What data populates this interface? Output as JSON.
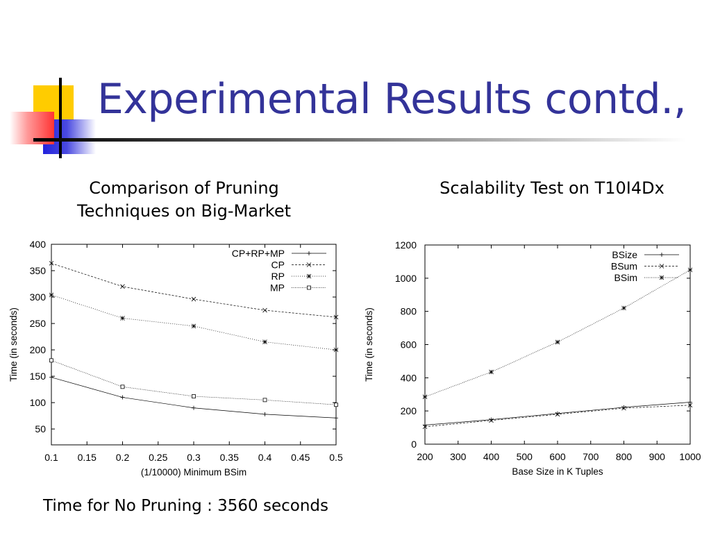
{
  "slide": {
    "title": "Experimental Results contd.,",
    "left_caption_line1": "Comparison of Pruning",
    "left_caption_line2": "Techniques on Big-Market",
    "right_caption": "Scalability Test on T10I4Dx",
    "footnote": "Time for No Pruning : 3560 seconds",
    "accent_colors": {
      "title": "#333399",
      "yellow": "#ffcc00",
      "red": "#ff3333",
      "blue": "#2222dd"
    }
  },
  "chart_data": [
    {
      "type": "line",
      "xlabel": "(1/10000) Minimum BSim",
      "ylabel": "Time (in seconds)",
      "xlim": [
        0.1,
        0.5
      ],
      "ylim": [
        20,
        400
      ],
      "xticks": [
        "0.1",
        "0.15",
        "0.2",
        "0.25",
        "0.3",
        "0.35",
        "0.4",
        "0.45",
        "0.5"
      ],
      "yticks": [
        "50",
        "100",
        "150",
        "200",
        "250",
        "300",
        "350",
        "400"
      ],
      "legend_position": "top-right",
      "x": [
        0.1,
        0.2,
        0.3,
        0.4,
        0.5
      ],
      "series": [
        {
          "name": "CP+RP+MP",
          "values": [
            148,
            110,
            90,
            78,
            71
          ]
        },
        {
          "name": "CP",
          "values": [
            364,
            320,
            296,
            275,
            262
          ]
        },
        {
          "name": "RP",
          "values": [
            304,
            260,
            245,
            215,
            200
          ]
        },
        {
          "name": "MP",
          "values": [
            180,
            130,
            112,
            105,
            96
          ]
        }
      ]
    },
    {
      "type": "line",
      "xlabel": "Base Size in K Tuples",
      "ylabel": "Time (in seconds)",
      "xlim": [
        200,
        1000
      ],
      "ylim": [
        0,
        1200
      ],
      "xticks": [
        "200",
        "300",
        "400",
        "500",
        "600",
        "700",
        "800",
        "900",
        "1000"
      ],
      "yticks": [
        "0",
        "200",
        "400",
        "600",
        "800",
        "1000",
        "1200"
      ],
      "legend_position": "top-right",
      "x": [
        200,
        400,
        600,
        800,
        1000
      ],
      "series": [
        {
          "name": "BSize",
          "values": [
            115,
            148,
            185,
            222,
            253
          ]
        },
        {
          "name": "BSum",
          "values": [
            105,
            143,
            180,
            217,
            235
          ]
        },
        {
          "name": "BSim",
          "values": [
            285,
            435,
            615,
            820,
            1050
          ]
        }
      ]
    }
  ]
}
